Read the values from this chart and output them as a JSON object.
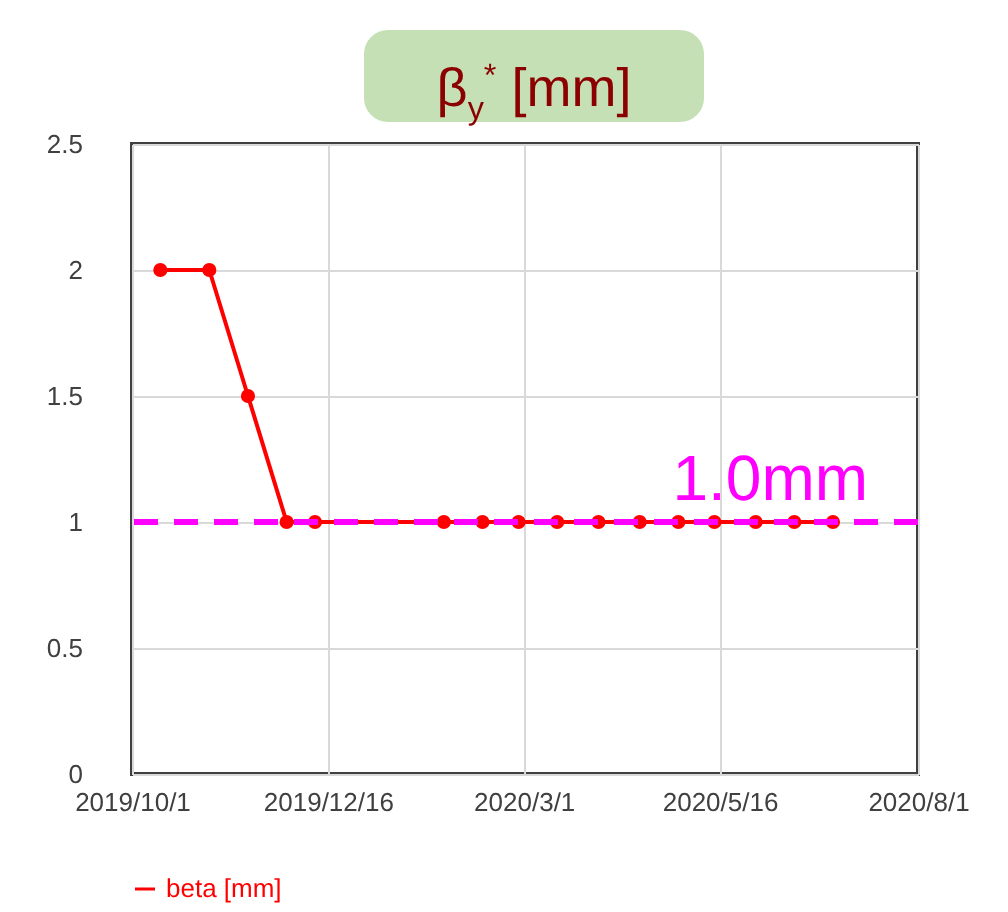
{
  "chart_data": {
    "type": "line",
    "title": "β$_{y}$$^{*}$ [mm]",
    "x": [
      "2019-10-12",
      "2019-10-31",
      "2019-11-15",
      "2019-11-30",
      "2019-12-11",
      "2020-01-30",
      "2020-02-14",
      "2020-02-28",
      "2020-03-14",
      "2020-03-30",
      "2020-04-15",
      "2020-04-30",
      "2020-05-14",
      "2020-05-30",
      "2020-06-14",
      "2020-06-29"
    ],
    "series": [
      {
        "name": "beta [mm]",
        "color": "#ff0000",
        "values": [
          2,
          2,
          1.5,
          1,
          1,
          1,
          1,
          1,
          1,
          1,
          1,
          1,
          1,
          1,
          1,
          1
        ]
      }
    ],
    "xlim": [
      "2019-10-01",
      "2020-08-01"
    ],
    "xticks": [
      {
        "value": "2019-10-01",
        "label": "2019/10/1"
      },
      {
        "value": "2019-12-16",
        "label": "2019/12/16"
      },
      {
        "value": "2020-03-01",
        "label": "2020/3/1"
      },
      {
        "value": "2020-05-16",
        "label": "2020/5/16"
      },
      {
        "value": "2020-08-01",
        "label": "2020/8/1"
      }
    ],
    "ylim": [
      0,
      2.5
    ],
    "yticks": [
      0,
      0.5,
      1,
      1.5,
      2,
      2.5
    ],
    "ref_lines": [
      {
        "axis": "y",
        "value": 1,
        "label": "1.0mm",
        "color": "#ff00ff",
        "line_style": "dashed"
      }
    ],
    "grid": true,
    "legend": "bottom",
    "marker": "circle",
    "line_style": "solid"
  }
}
